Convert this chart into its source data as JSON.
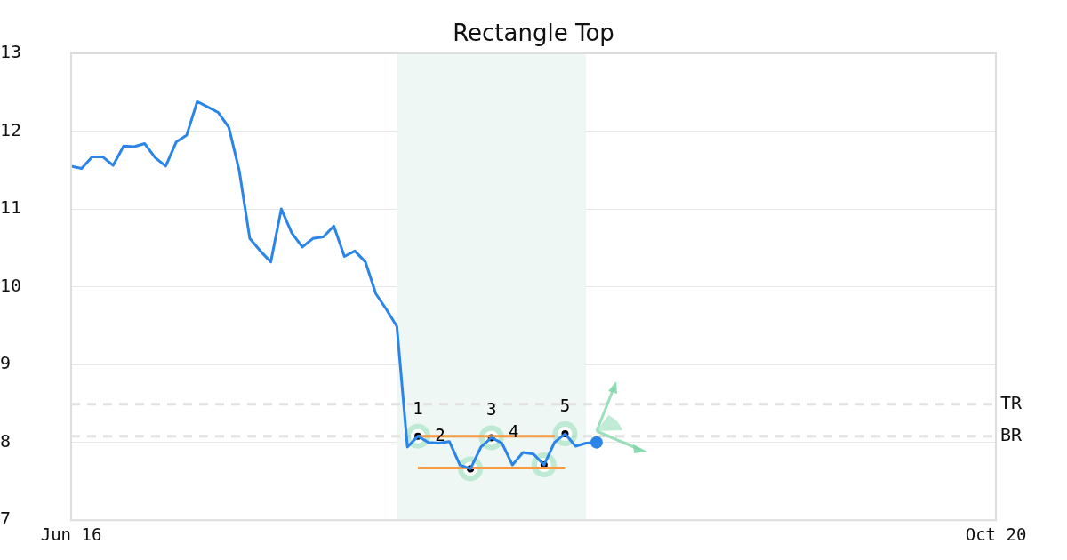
{
  "chart_data": {
    "type": "line",
    "title": "Rectangle Top",
    "categories": [
      "Jun 16",
      null,
      null,
      null,
      null,
      null,
      null,
      null,
      null,
      null,
      null,
      null,
      null,
      null,
      null,
      null,
      null,
      null,
      null,
      null,
      null,
      null,
      null,
      null,
      null,
      null,
      null,
      null,
      null,
      null,
      null,
      null,
      null,
      null,
      null,
      null,
      null,
      null,
      null,
      null,
      null,
      null,
      null,
      null,
      null,
      null,
      null,
      null,
      null,
      null,
      null,
      null,
      null,
      null,
      null,
      null,
      null,
      null,
      null,
      null,
      null,
      null,
      null,
      null,
      null,
      null,
      null,
      null,
      null,
      null,
      null,
      null,
      null,
      null,
      null,
      null,
      null,
      null,
      null,
      null,
      null,
      null,
      null,
      null,
      null,
      null,
      null,
      null,
      "Oct 20"
    ],
    "ylim": [
      7,
      13
    ],
    "yticks": [
      7,
      8,
      9,
      10,
      11,
      12,
      13
    ],
    "grid": "y",
    "legend": false,
    "marker": "none",
    "series": [
      {
        "color": "#2b85e8",
        "values": [
          11.55,
          11.52,
          11.67,
          11.67,
          11.56,
          11.81,
          11.8,
          11.84,
          11.66,
          11.55,
          11.86,
          11.95,
          12.38,
          12.31,
          12.24,
          12.05,
          11.49,
          10.62,
          10.46,
          10.32,
          11.0,
          10.69,
          10.51,
          10.62,
          10.64,
          10.78,
          10.39,
          10.46,
          10.32,
          9.91,
          9.71,
          9.49,
          7.94,
          8.08,
          8.0,
          7.99,
          8.01,
          7.71,
          7.66,
          7.94,
          8.06,
          7.99,
          7.71,
          7.87,
          7.85,
          7.71,
          8.0,
          8.11,
          7.95,
          7.99,
          8.0,
          null,
          null,
          null,
          null,
          null,
          null,
          null,
          null,
          null,
          null,
          null,
          null,
          null,
          null,
          null,
          null,
          null,
          null,
          null,
          null,
          null,
          null,
          null,
          null,
          null,
          null,
          null,
          null,
          null,
          null,
          null,
          null,
          null,
          null,
          null,
          null,
          null,
          null
        ]
      },
      {
        "color": "#f59a45",
        "values": [
          null,
          null,
          null,
          null,
          null,
          null,
          null,
          null,
          null,
          null,
          null,
          null,
          null,
          null,
          null,
          null,
          null,
          null,
          null,
          null,
          null,
          null,
          null,
          null,
          null,
          null,
          null,
          null,
          null,
          null,
          null,
          null,
          null,
          8.08,
          8.08,
          8.08,
          8.08,
          8.08,
          8.08,
          8.08,
          8.08,
          8.08,
          8.08,
          8.08,
          8.08,
          8.08,
          8.08,
          null,
          null,
          null,
          null,
          null,
          null,
          null,
          null,
          null,
          null,
          null,
          null,
          null,
          null,
          null,
          null,
          null,
          null,
          null,
          null,
          null,
          null,
          null,
          null,
          null,
          null,
          null,
          null,
          null,
          null,
          null,
          null,
          null,
          null,
          null,
          null,
          null,
          null,
          null,
          null,
          null,
          null
        ]
      },
      {
        "color": "#f59a45",
        "values": [
          null,
          null,
          null,
          null,
          null,
          null,
          null,
          null,
          null,
          null,
          null,
          null,
          null,
          null,
          null,
          null,
          null,
          null,
          null,
          null,
          null,
          null,
          null,
          null,
          null,
          null,
          null,
          null,
          null,
          null,
          null,
          null,
          null,
          7.67,
          7.67,
          7.67,
          7.67,
          7.67,
          7.67,
          7.67,
          7.67,
          7.67,
          7.67,
          7.67,
          7.67,
          7.67,
          7.67,
          7.67,
          null,
          null,
          null,
          null,
          null,
          null,
          null,
          null,
          null,
          null,
          null,
          null,
          null,
          null,
          null,
          null,
          null,
          null,
          null,
          null,
          null,
          null,
          null,
          null,
          null,
          null,
          null,
          null,
          null,
          null,
          null,
          null,
          null,
          null,
          null,
          null,
          null,
          null,
          null,
          null,
          null
        ]
      },
      {
        "type": "scatter",
        "color": "#000000",
        "marker": "circle",
        "values": [
          null,
          null,
          null,
          null,
          null,
          null,
          null,
          null,
          null,
          null,
          null,
          null,
          null,
          null,
          null,
          null,
          null,
          null,
          null,
          null,
          null,
          null,
          null,
          null,
          null,
          null,
          null,
          null,
          null,
          null,
          null,
          null,
          null,
          8.08,
          null,
          null,
          null,
          null,
          7.66,
          null,
          8.06,
          null,
          null,
          null,
          null,
          7.71,
          null,
          8.11,
          null,
          null,
          null,
          null,
          null,
          null,
          null,
          null,
          null,
          null,
          null,
          null,
          null,
          null,
          null,
          null,
          null,
          null,
          null,
          null,
          null,
          null,
          null,
          null,
          null,
          null,
          null,
          null,
          null,
          null,
          null,
          null,
          null,
          null,
          null,
          null,
          null,
          null,
          null,
          null,
          null
        ]
      },
      {
        "type": "scatter",
        "color": "#2b85e8",
        "marker": "circle",
        "values": [
          null,
          null,
          null,
          null,
          null,
          null,
          null,
          null,
          null,
          null,
          null,
          null,
          null,
          null,
          null,
          null,
          null,
          null,
          null,
          null,
          null,
          null,
          null,
          null,
          null,
          null,
          null,
          null,
          null,
          null,
          null,
          null,
          null,
          null,
          null,
          null,
          null,
          null,
          null,
          null,
          null,
          null,
          null,
          null,
          null,
          null,
          null,
          null,
          null,
          null,
          8.0,
          null,
          null,
          null,
          null,
          null,
          null,
          null,
          null,
          null,
          null,
          null,
          null,
          null,
          null,
          null,
          null,
          null,
          null,
          null,
          null,
          null,
          null,
          null,
          null,
          null,
          null,
          null,
          null,
          null,
          null,
          null,
          null,
          null,
          null,
          null,
          null,
          null,
          null
        ]
      }
    ],
    "ref_lines": [
      {
        "axis": "y",
        "value": 8.49,
        "label": "TR",
        "color": "#e0e0e0",
        "line_style": "dashed"
      },
      {
        "axis": "y",
        "value": 8.08,
        "label": "BR",
        "color": "#e0e0e0",
        "line_style": "dashed"
      }
    ],
    "annotations": [
      "1",
      "2",
      "3",
      "4",
      "5"
    ]
  }
}
